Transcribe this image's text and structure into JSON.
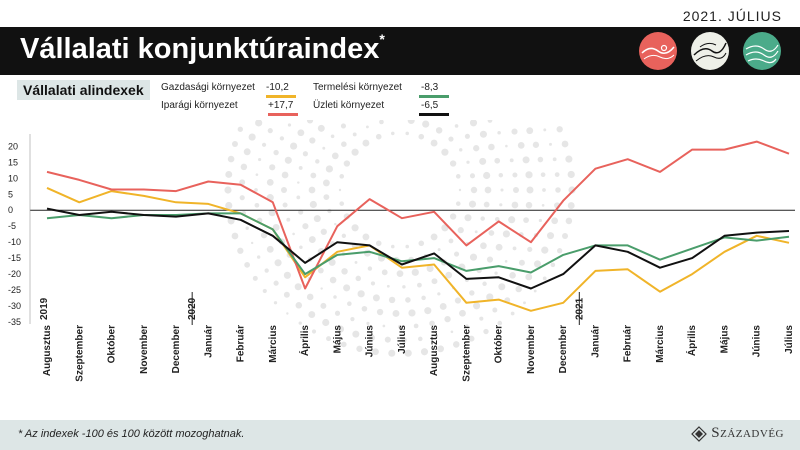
{
  "header": {
    "date": "2021. JÚLIUS",
    "title": "Vállalati konjunktúraindex",
    "title_mark": "*"
  },
  "subtitle": "Vállalati alindexek",
  "legend": [
    {
      "label": "Gazdasági környezet",
      "value": "-10,2",
      "color": "#f0b429"
    },
    {
      "label": "Iparági környezet",
      "value": "+17,7",
      "color": "#e8625c"
    },
    {
      "label": "Termelési környezet",
      "value": "-8,3",
      "color": "#4a9d6b"
    },
    {
      "label": "Üzleti környezet",
      "value": "-6,5",
      "color": "#111111"
    }
  ],
  "colors": {
    "accent_red": "#e8625c",
    "accent_green": "#4bab8a",
    "footer_bg": "#dde6e6"
  },
  "chart_data": {
    "type": "line",
    "ylim": [
      -35,
      22
    ],
    "yticks": [
      20,
      15,
      10,
      5,
      0,
      -5,
      -10,
      -15,
      -20,
      -25,
      -30,
      -35
    ],
    "categories": [
      "Augusztus",
      "Szeptember",
      "Október",
      "November",
      "December",
      "Január",
      "Február",
      "Március",
      "Április",
      "Május",
      "Június",
      "Július",
      "Augusztus",
      "Szeptember",
      "Október",
      "November",
      "December",
      "Január",
      "Február",
      "Március",
      "Április",
      "Május",
      "Június",
      "Július"
    ],
    "year_markers": [
      {
        "label": "2019",
        "index": 0
      },
      {
        "label": "2020",
        "index": 5
      },
      {
        "label": "2021",
        "index": 17
      }
    ],
    "series": [
      {
        "name": "Gazdasági környezet",
        "color": "#f0b429",
        "values": [
          7.0,
          2.5,
          6.0,
          4.5,
          2.5,
          2.0,
          -1.0,
          -6.0,
          -21.0,
          -13.0,
          -11.0,
          -18.0,
          -17.0,
          -29.0,
          -28.0,
          -31.5,
          -29.0,
          -19.0,
          -18.5,
          -25.5,
          -20.0,
          -13.0,
          -8.0,
          -10.2
        ]
      },
      {
        "name": "Iparági környezet",
        "color": "#e8625c",
        "values": [
          12.0,
          9.5,
          6.5,
          6.5,
          6.0,
          9.0,
          8.0,
          2.5,
          -24.5,
          -5.0,
          3.5,
          -2.5,
          -0.5,
          -11.0,
          -3.5,
          -10.0,
          3.0,
          13.0,
          16.0,
          12.0,
          19.0,
          19.0,
          21.5,
          17.7
        ]
      },
      {
        "name": "Termelési környezet",
        "color": "#4a9d6b",
        "values": [
          -2.5,
          -1.5,
          -2.5,
          -1.5,
          -1.5,
          -1.0,
          -1.0,
          -6.0,
          -20.0,
          -14.0,
          -13.0,
          -16.0,
          -15.0,
          -19.0,
          -17.5,
          -19.5,
          -14.0,
          -11.0,
          -11.0,
          -15.5,
          -12.0,
          -8.5,
          -9.5,
          -8.3
        ]
      },
      {
        "name": "Üzleti környezet",
        "color": "#111111",
        "values": [
          0.5,
          -1.5,
          -0.5,
          -1.5,
          -2.0,
          -1.0,
          -3.0,
          -8.0,
          -16.5,
          -10.0,
          -11.0,
          -17.0,
          -13.5,
          -21.5,
          -21.0,
          -24.5,
          -20.0,
          -11.0,
          -13.0,
          -18.0,
          -15.0,
          -8.0,
          -7.0,
          -6.5
        ]
      }
    ]
  },
  "footer": {
    "note": "* Az indexek -100 és 100 között mozoghatnak.",
    "brand": "Századvég"
  }
}
